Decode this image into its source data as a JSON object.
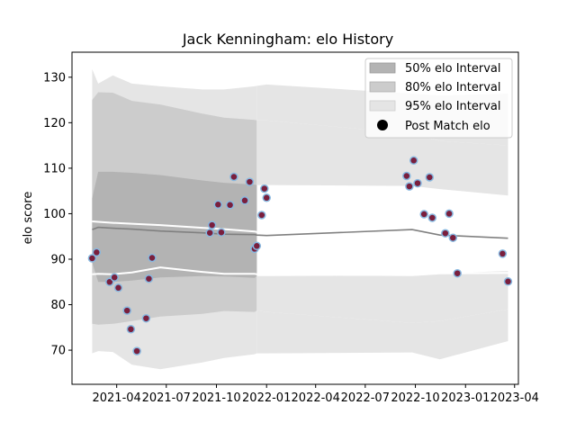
{
  "chart_data": {
    "type": "scatter",
    "title": "Jack Kenningham: elo History",
    "xlabel": "",
    "ylabel": "elo score",
    "xlim": [
      "2021-01-09",
      "2023-04-08"
    ],
    "ylim": [
      62.5,
      135.5
    ],
    "x_ticks": [
      "2021-04",
      "2021-07",
      "2021-10",
      "2022-01",
      "2022-04",
      "2022-07",
      "2022-10",
      "2023-01",
      "2023-04"
    ],
    "y_ticks": [
      70,
      80,
      90,
      100,
      110,
      120,
      130
    ],
    "legend": {
      "position": "top-right",
      "entries": [
        "50% elo Interval",
        "80% elo Interval",
        "95% elo Interval",
        "Post Match elo"
      ]
    },
    "colors": {
      "band50": "#b3b3b3",
      "band80": "#cccccc",
      "band95": "#e5e5e5",
      "mean_line": "#808080",
      "white_line": "#ffffff",
      "point_fill": "#7a1f3d",
      "point_edge": "#87b8e0"
    },
    "intervals": {
      "dates": [
        "2021-02-15",
        "2021-02-26",
        "2021-03-25",
        "2021-04-29",
        "2021-06-20",
        "2021-09-05",
        "2021-10-15",
        "2021-12-10",
        "2021-12-14",
        "2022-01-01",
        "2022-09-25",
        "2022-11-15",
        "2023-03-20"
      ],
      "mean": [
        96.5,
        97.0,
        96.8,
        96.6,
        96.2,
        95.8,
        95.5,
        95.4,
        95.3,
        95.2,
        96.5,
        95.3,
        94.6
      ],
      "upper_white": [
        98.3,
        98.2,
        98.0,
        97.8,
        97.5,
        96.9,
        96.6,
        96.1,
        96.0,
        95.8,
        96.8,
        95.8,
        94.8
      ],
      "lower_white": [
        86.7,
        86.8,
        86.7,
        87.1,
        88.2,
        87.2,
        86.8,
        86.8,
        86.7,
        86.7,
        86.5,
        86.9,
        87.0
      ],
      "p50": [
        [
          103.4,
          89.3
        ],
        [
          109.2,
          85.0
        ],
        [
          109.2,
          85.0
        ],
        [
          109.0,
          85.3
        ],
        [
          108.5,
          86.0
        ],
        [
          107.3,
          86.3
        ],
        [
          106.8,
          86.2
        ],
        [
          106.4,
          85.9
        ],
        [
          106.3,
          86.3
        ],
        [
          106.3,
          86.3
        ],
        [
          106.1,
          86.4
        ],
        [
          105.4,
          86.9
        ],
        [
          104.0,
          87.4
        ]
      ],
      "p80": [
        [
          125.0,
          75.8
        ],
        [
          126.7,
          75.6
        ],
        [
          126.6,
          75.8
        ],
        [
          124.8,
          76.4
        ],
        [
          124.0,
          77.4
        ],
        [
          122.0,
          78.0
        ],
        [
          121.1,
          78.6
        ],
        [
          120.6,
          78.4
        ],
        [
          120.5,
          78.7
        ],
        [
          120.5,
          78.4
        ],
        [
          117.6,
          76.0
        ],
        [
          116.0,
          76.4
        ],
        [
          115.0,
          79.0
        ]
      ],
      "p95": [
        [
          131.8,
          69.3
        ],
        [
          128.6,
          69.8
        ],
        [
          130.4,
          69.6
        ],
        [
          128.6,
          66.8
        ],
        [
          128.0,
          65.8
        ],
        [
          127.3,
          67.3
        ],
        [
          127.3,
          68.3
        ],
        [
          128.0,
          69.1
        ],
        [
          128.1,
          69.3
        ],
        [
          128.4,
          69.3
        ],
        [
          126.4,
          69.5
        ],
        [
          126.0,
          68.0
        ],
        [
          126.4,
          72.0
        ]
      ],
      "open_from": "2021-12-14"
    },
    "points": [
      {
        "x": "2021-02-15",
        "y": 90.2
      },
      {
        "x": "2021-02-23",
        "y": 91.5
      },
      {
        "x": "2021-03-19",
        "y": 85.0
      },
      {
        "x": "2021-03-28",
        "y": 86.0
      },
      {
        "x": "2021-04-04",
        "y": 83.7
      },
      {
        "x": "2021-04-20",
        "y": 78.7
      },
      {
        "x": "2021-04-27",
        "y": 74.6
      },
      {
        "x": "2021-05-08",
        "y": 69.8
      },
      {
        "x": "2021-05-25",
        "y": 77.0
      },
      {
        "x": "2021-05-30",
        "y": 85.7
      },
      {
        "x": "2021-06-05",
        "y": 90.3
      },
      {
        "x": "2021-09-19",
        "y": 95.8
      },
      {
        "x": "2021-09-23",
        "y": 97.5
      },
      {
        "x": "2021-10-04",
        "y": 102.0
      },
      {
        "x": "2021-10-10",
        "y": 95.9
      },
      {
        "x": "2021-10-26",
        "y": 101.9
      },
      {
        "x": "2021-11-02",
        "y": 108.1
      },
      {
        "x": "2021-11-22",
        "y": 102.9
      },
      {
        "x": "2021-12-01",
        "y": 107.0
      },
      {
        "x": "2021-12-10",
        "y": 92.3
      },
      {
        "x": "2021-12-14",
        "y": 92.9
      },
      {
        "x": "2021-12-23",
        "y": 99.7
      },
      {
        "x": "2021-12-28",
        "y": 105.5
      },
      {
        "x": "2022-01-01",
        "y": 103.5
      },
      {
        "x": "2022-09-15",
        "y": 108.3
      },
      {
        "x": "2022-09-20",
        "y": 106.0
      },
      {
        "x": "2022-09-28",
        "y": 111.7
      },
      {
        "x": "2022-10-05",
        "y": 106.7
      },
      {
        "x": "2022-10-17",
        "y": 99.9
      },
      {
        "x": "2022-10-27",
        "y": 108.0
      },
      {
        "x": "2022-11-01",
        "y": 99.1
      },
      {
        "x": "2022-11-25",
        "y": 95.7
      },
      {
        "x": "2022-12-02",
        "y": 100.0
      },
      {
        "x": "2022-12-09",
        "y": 94.7
      },
      {
        "x": "2022-12-17",
        "y": 86.9
      },
      {
        "x": "2023-03-10",
        "y": 91.2
      },
      {
        "x": "2023-03-20",
        "y": 85.1
      }
    ]
  }
}
